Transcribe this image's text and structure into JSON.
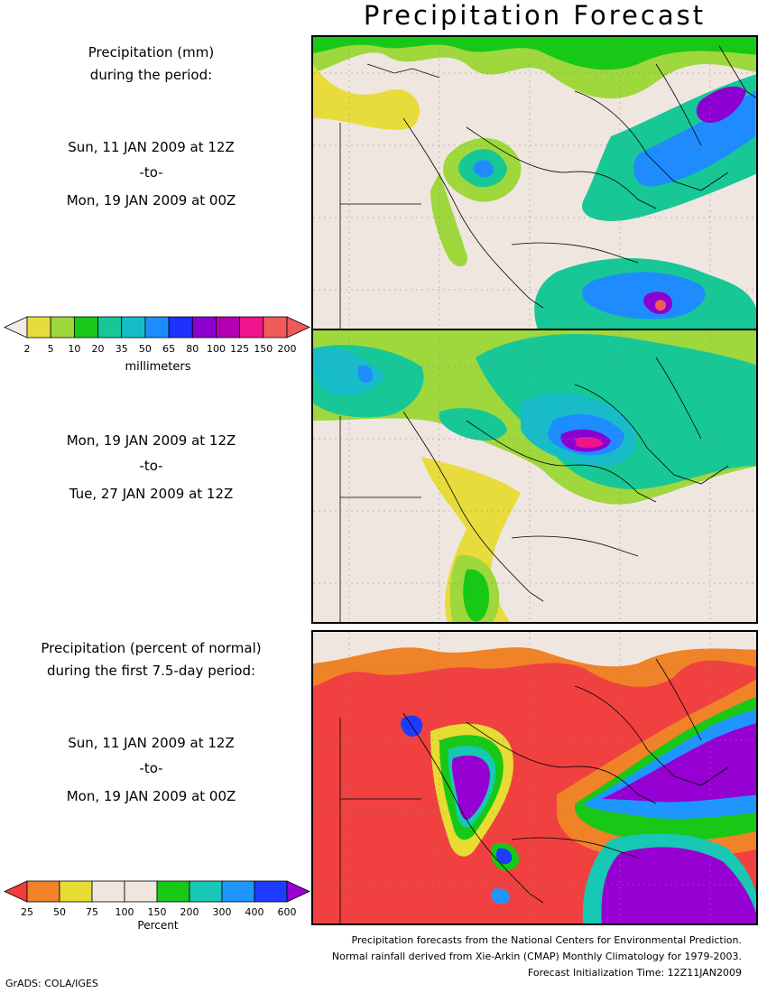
{
  "title": "Precipitation Forecast",
  "panel1": {
    "heading": [
      "Precipitation (mm)",
      "during the period:"
    ],
    "start": "Sun, 11 JAN 2009 at 12Z",
    "sep": "-to-",
    "end": "Mon, 19 JAN 2009 at 00Z"
  },
  "panel2": {
    "start": "Mon, 19 JAN 2009 at 12Z",
    "sep": "-to-",
    "end": "Tue, 27 JAN 2009 at 12Z"
  },
  "panel3": {
    "heading": [
      "Precipitation (percent of normal)",
      "during the first 7.5-day period:"
    ],
    "start": "Sun, 11 JAN 2009 at 12Z",
    "sep": "-to-",
    "end": "Mon, 19 JAN 2009 at 00Z"
  },
  "legend_mm": {
    "unit": "millimeters",
    "labels": [
      "2",
      "5",
      "10",
      "20",
      "35",
      "50",
      "65",
      "80",
      "100",
      "125",
      "150",
      "200"
    ],
    "colors": [
      "#f5ece6",
      "#e8dc3c",
      "#9ed83c",
      "#17c817",
      "#17c896",
      "#17bcc8",
      "#1e8cff",
      "#1e32ff",
      "#8c00d2",
      "#b400b4",
      "#f0148c",
      "#f05a5a",
      "#f05a5a"
    ]
  },
  "legend_pct": {
    "unit": "Percent",
    "labels": [
      "25",
      "50",
      "75",
      "100",
      "150",
      "200",
      "300",
      "400",
      "600"
    ],
    "colors": [
      "#f03c3c",
      "#f08228",
      "#e6dc32",
      "#f0e6e0",
      "#f0e6e0",
      "#17c817",
      "#17c8b4",
      "#1e96ff",
      "#1e3cff",
      "#9600d2"
    ]
  },
  "footer": [
    "Precipitation forecasts from the National Centers for Environmental Prediction.",
    "Normal rainfall derived from Xie-Arkin (CMAP) Monthly Climatology for 1979-2003.",
    "Forecast Initialization Time: 12Z11JAN2009"
  ],
  "credit": "GrADS: COLA/IGES",
  "colors": {
    "land": "#f0e6e0",
    "deficit": "#f04040"
  }
}
